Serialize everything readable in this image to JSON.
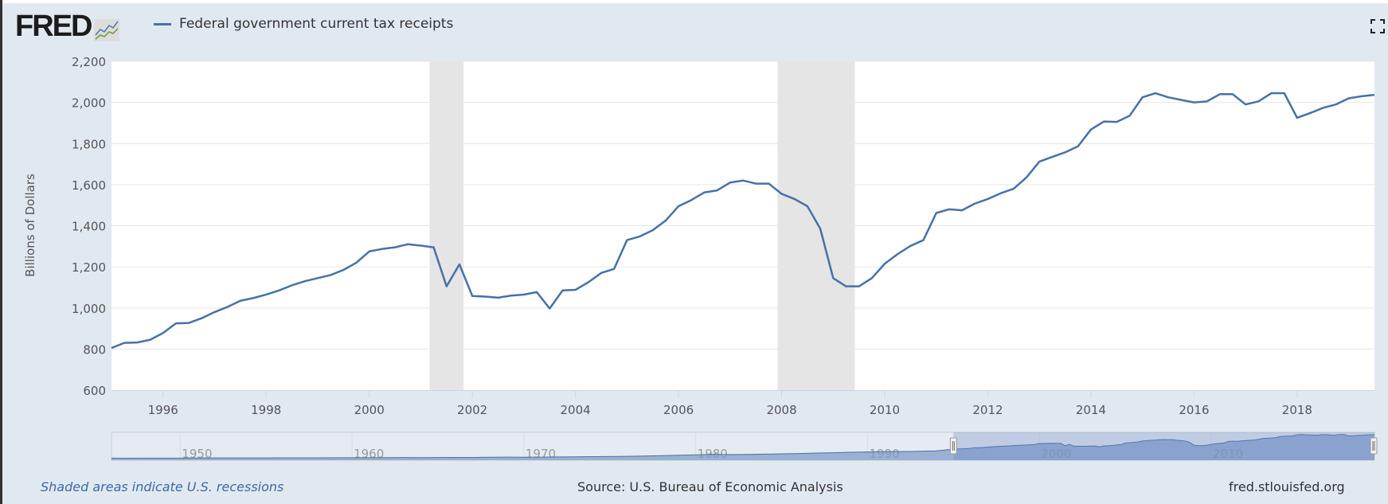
{
  "header": {
    "logo_text": "FRED",
    "legend_label": "Federal government current tax receipts",
    "fullscreen_icon": "fullscreen-icon"
  },
  "footer": {
    "recession_note": "Shaded areas indicate U.S. recessions",
    "source": "Source: U.S. Bureau of Economic Analysis",
    "site": "fred.stlouisfed.org"
  },
  "colors": {
    "series": "#4572a7",
    "recession": "#e5e5e5",
    "background": "#e1e9f0",
    "navigator_fill": "#809ec8"
  },
  "chart_data": {
    "type": "line",
    "title": "",
    "xlabel": "",
    "ylabel": "Billions of Dollars",
    "xlim": [
      1995,
      2019.5
    ],
    "ylim": [
      600,
      2200
    ],
    "yticks": [
      600,
      800,
      1000,
      1200,
      1400,
      1600,
      1800,
      2000,
      2200
    ],
    "ytick_labels": [
      "600",
      "800",
      "1,000",
      "1,200",
      "1,400",
      "1,600",
      "1,800",
      "2,000",
      "2,200"
    ],
    "xticks": [
      1996,
      1998,
      2000,
      2002,
      2004,
      2006,
      2008,
      2010,
      2012,
      2014,
      2016,
      2018
    ],
    "xtick_labels": [
      "1996",
      "1998",
      "2000",
      "2002",
      "2004",
      "2006",
      "2008",
      "2010",
      "2012",
      "2014",
      "2016",
      "2018"
    ],
    "grid": true,
    "legend": "top-left",
    "recessions": [
      [
        2001.17,
        2001.83
      ],
      [
        2007.92,
        2009.42
      ]
    ],
    "series": [
      {
        "name": "Federal government current tax receipts",
        "x_start": 1995.0,
        "x_step": 0.25,
        "values": [
          805,
          830,
          832,
          845,
          878,
          925,
          927,
          950,
          980,
          1005,
          1035,
          1048,
          1065,
          1085,
          1110,
          1130,
          1145,
          1160,
          1185,
          1220,
          1275,
          1287,
          1295,
          1310,
          1303,
          1295,
          1105,
          1212,
          1058,
          1055,
          1050,
          1060,
          1065,
          1077,
          997,
          1085,
          1088,
          1125,
          1170,
          1190,
          1330,
          1348,
          1378,
          1425,
          1495,
          1525,
          1562,
          1572,
          1610,
          1620,
          1605,
          1605,
          1555,
          1530,
          1495,
          1385,
          1145,
          1105,
          1105,
          1145,
          1215,
          1262,
          1302,
          1330,
          1462,
          1480,
          1475,
          1508,
          1530,
          1558,
          1580,
          1635,
          1712,
          1735,
          1757,
          1787,
          1868,
          1907,
          1905,
          1935,
          2025,
          2045,
          2025,
          2012,
          2000,
          2005,
          2040,
          2040,
          1990,
          2005,
          2045,
          2045,
          1925,
          1948,
          1973,
          1990,
          2020,
          2030,
          2037
        ]
      }
    ],
    "navigator": {
      "xlim": [
        1946,
        2019.5
      ],
      "tick_labels": [
        "1950",
        "1960",
        "1970",
        "1980",
        "1990",
        "2000",
        "2010"
      ],
      "ticks": [
        1950,
        1960,
        1970,
        1980,
        1990,
        2000,
        2010
      ],
      "selected_range": [
        1995,
        2019.5
      ],
      "annual_values_1946_1994": [
        40,
        38,
        42,
        40,
        45,
        55,
        60,
        62,
        58,
        62,
        68,
        70,
        68,
        75,
        80,
        80,
        85,
        90,
        88,
        92,
        100,
        105,
        115,
        125,
        120,
        125,
        140,
        155,
        170,
        175,
        195,
        220,
        250,
        290,
        320,
        360,
        350,
        355,
        380,
        410,
        430,
        470,
        500,
        540,
        570,
        590,
        600,
        625,
        660
      ]
    }
  }
}
